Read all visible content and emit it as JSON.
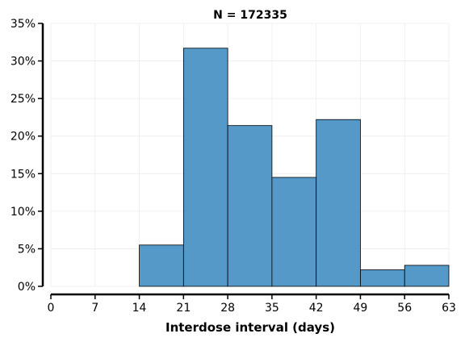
{
  "chart_data": {
    "type": "bar",
    "title": "N = 172335",
    "xlabel": "Interdose interval (days)",
    "ylabel": "",
    "bin_edges": [
      14,
      21,
      28,
      35,
      42,
      49,
      56,
      63
    ],
    "values": [
      5.5,
      31.7,
      21.4,
      14.5,
      22.2,
      2.2,
      2.8
    ],
    "xlim": [
      0,
      63
    ],
    "ylim": [
      0,
      35
    ],
    "x_ticks": [
      0,
      7,
      14,
      21,
      28,
      35,
      42,
      49,
      56,
      63
    ],
    "x_tick_labels": [
      "0",
      "7",
      "14",
      "21",
      "28",
      "35",
      "42",
      "49",
      "56",
      "63"
    ],
    "y_ticks": [
      0,
      5,
      10,
      15,
      20,
      25,
      30,
      35
    ],
    "y_tick_labels": [
      "0%",
      "5%",
      "10%",
      "15%",
      "20%",
      "25%",
      "30%",
      "35%"
    ],
    "grid": true,
    "bar_color": "#5599c8",
    "edge_color": "#000000"
  }
}
